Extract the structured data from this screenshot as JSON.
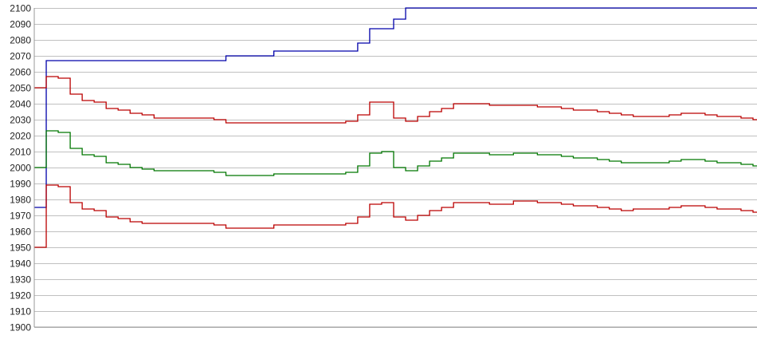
{
  "chart_data": {
    "type": "line",
    "step": true,
    "title": "",
    "xlabel": "",
    "ylabel": "",
    "ylim": [
      1900,
      2100
    ],
    "yticks": [
      1900,
      1910,
      1920,
      1930,
      1940,
      1950,
      1960,
      1970,
      1980,
      1990,
      2000,
      2010,
      2020,
      2030,
      2040,
      2050,
      2060,
      2070,
      2080,
      2090,
      2100
    ],
    "grid": true,
    "legend": "none",
    "series": [
      {
        "color": "#0000aa",
        "values": [
          1975,
          2067,
          2067,
          2067,
          2067,
          2067,
          2067,
          2067,
          2067,
          2067,
          2067,
          2067,
          2067,
          2067,
          2067,
          2067,
          2070,
          2070,
          2070,
          2070,
          2073,
          2073,
          2073,
          2073,
          2073,
          2073,
          2073,
          2078,
          2087,
          2087,
          2093,
          2100,
          2100,
          2100,
          2100,
          2100,
          2100,
          2100,
          2100,
          2100,
          2100,
          2100,
          2100,
          2100,
          2100,
          2100,
          2100,
          2100,
          2100,
          2100,
          2100,
          2100,
          2100,
          2100,
          2100,
          2100,
          2100,
          2100,
          2100,
          2100,
          2100
        ]
      },
      {
        "color": "#bb0000",
        "values": [
          2050,
          2057,
          2056,
          2046,
          2042,
          2041,
          2037,
          2036,
          2034,
          2033,
          2031,
          2031,
          2031,
          2031,
          2031,
          2030,
          2028,
          2028,
          2028,
          2028,
          2028,
          2028,
          2028,
          2028,
          2028,
          2028,
          2029,
          2033,
          2041,
          2041,
          2031,
          2029,
          2032,
          2035,
          2037,
          2040,
          2040,
          2040,
          2039,
          2039,
          2039,
          2039,
          2038,
          2038,
          2037,
          2036,
          2036,
          2035,
          2034,
          2033,
          2032,
          2032,
          2032,
          2033,
          2034,
          2034,
          2033,
          2032,
          2032,
          2031,
          2030
        ]
      },
      {
        "color": "#007700",
        "values": [
          2000,
          2023,
          2022,
          2012,
          2008,
          2007,
          2003,
          2002,
          2000,
          1999,
          1998,
          1998,
          1998,
          1998,
          1998,
          1997,
          1995,
          1995,
          1995,
          1995,
          1996,
          1996,
          1996,
          1996,
          1996,
          1996,
          1997,
          2001,
          2009,
          2010,
          2000,
          1998,
          2001,
          2004,
          2006,
          2009,
          2009,
          2009,
          2008,
          2008,
          2009,
          2009,
          2008,
          2008,
          2007,
          2006,
          2006,
          2005,
          2004,
          2003,
          2003,
          2003,
          2003,
          2004,
          2005,
          2005,
          2004,
          2003,
          2003,
          2002,
          2001
        ]
      },
      {
        "color": "#bb0000",
        "values": [
          1950,
          1989,
          1988,
          1978,
          1974,
          1973,
          1969,
          1968,
          1966,
          1965,
          1965,
          1965,
          1965,
          1965,
          1965,
          1964,
          1962,
          1962,
          1962,
          1962,
          1964,
          1964,
          1964,
          1964,
          1964,
          1964,
          1965,
          1969,
          1977,
          1978,
          1969,
          1967,
          1970,
          1973,
          1975,
          1978,
          1978,
          1978,
          1977,
          1977,
          1979,
          1979,
          1978,
          1978,
          1977,
          1976,
          1976,
          1975,
          1974,
          1973,
          1974,
          1974,
          1974,
          1975,
          1976,
          1976,
          1975,
          1974,
          1974,
          1973,
          1972
        ]
      }
    ]
  }
}
